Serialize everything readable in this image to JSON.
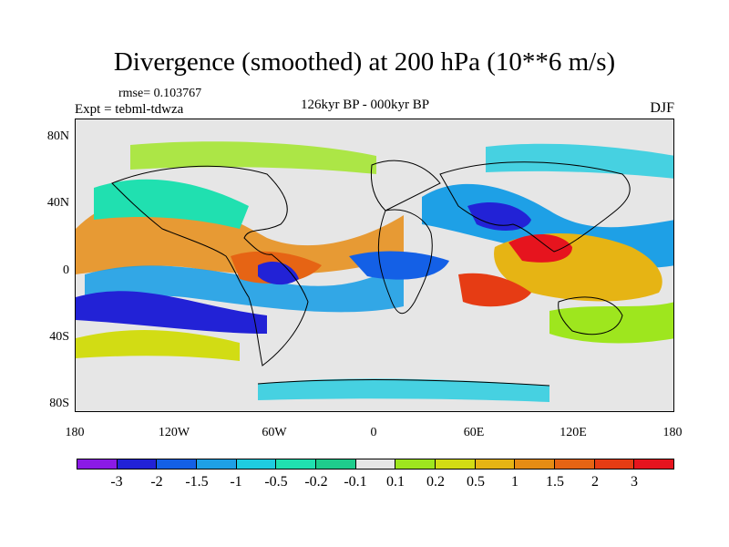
{
  "title": "Divergence (smoothed) at 200 hPa (10**6 m/s)",
  "rmse_label": "rmse= 0.103767",
  "experiment_label": "Expt = tebml-tdwza",
  "period_label": "126kyr BP - 000kyr BP",
  "season_label": "DJF",
  "map": {
    "lat_ticks": [
      "80N",
      "40N",
      "0",
      "40S",
      "80S"
    ],
    "lon_ticks": [
      "180",
      "120W",
      "60W",
      "0",
      "60E",
      "120E",
      "180"
    ]
  },
  "colorbar": {
    "colors": [
      "#8b1ae6",
      "#2222d6",
      "#1460e6",
      "#1ea0e6",
      "#1ecce0",
      "#20e0b0",
      "#1ecc8c",
      "#e6e6e6",
      "#9ee61e",
      "#d2dc14",
      "#e6b414",
      "#e68c14",
      "#e66414",
      "#e63c14",
      "#e6141e"
    ],
    "labels": [
      "-3",
      "-2",
      "-1.5",
      "-1",
      "-0.5",
      "-0.2",
      "-0.1",
      "0.1",
      "0.2",
      "0.5",
      "1",
      "1.5",
      "2",
      "3"
    ]
  }
}
